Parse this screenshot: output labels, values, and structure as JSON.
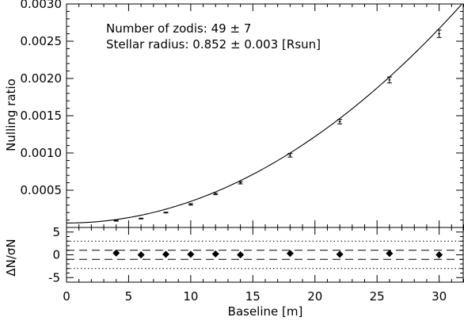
{
  "chart_data": [
    {
      "type": "line",
      "ylabel": "Nulling ratio",
      "xlim": [
        0,
        32
      ],
      "ylim": [
        0,
        0.003
      ],
      "grid": false,
      "x_ticks": [
        "0",
        "5",
        "10",
        "15",
        "20",
        "25",
        "30"
      ],
      "y_ticks": [
        "0.0005",
        "0.0010",
        "0.0015",
        "0.0020",
        "0.0025",
        "0.0030"
      ],
      "y_tick_values": [
        0.0005,
        0.001,
        0.0015,
        0.002,
        0.0025,
        0.003
      ],
      "annotations": [
        "Number of zodis: 49 ± 7",
        "Stellar radius: 0.852 ± 0.003 [Rsun]"
      ],
      "model_curve": {
        "formula": "y = 0.00006 + 0.00000290 * x^2",
        "x_range": [
          0,
          32
        ]
      },
      "points": [
        {
          "x": 4,
          "y": 9e-05,
          "err": 5e-06
        },
        {
          "x": 6,
          "y": 0.00012,
          "err": 5e-06
        },
        {
          "x": 8,
          "y": 0.0002,
          "err": 5e-06
        },
        {
          "x": 10,
          "y": 0.00031,
          "err": 1e-05
        },
        {
          "x": 12,
          "y": 0.00045,
          "err": 1e-05
        },
        {
          "x": 14,
          "y": 0.0006,
          "err": 1.5e-05
        },
        {
          "x": 18,
          "y": 0.00097,
          "err": 2.5e-05
        },
        {
          "x": 22,
          "y": 0.00142,
          "err": 3e-05
        },
        {
          "x": 26,
          "y": 0.00198,
          "err": 4e-05
        },
        {
          "x": 30,
          "y": 0.0026,
          "err": 5e-05
        }
      ]
    },
    {
      "type": "scatter",
      "xlabel": "Baseline [m]",
      "ylabel": "ΔN/σN",
      "xlim": [
        0,
        32
      ],
      "ylim": [
        -6,
        6
      ],
      "x_ticks": [
        "0",
        "5",
        "10",
        "15",
        "20",
        "25",
        "30"
      ],
      "y_ticks": [
        "5",
        "0",
        "-5"
      ],
      "y_tick_values": [
        5,
        0,
        -5
      ],
      "reference_lines": {
        "dashed": [
          1,
          -1
        ],
        "dotted": [
          3,
          -3
        ]
      },
      "points": [
        {
          "x": 4,
          "y": 0.4
        },
        {
          "x": 6,
          "y": 0.0
        },
        {
          "x": 8,
          "y": 0.1
        },
        {
          "x": 10,
          "y": 0.1
        },
        {
          "x": 12,
          "y": 0.2
        },
        {
          "x": 14,
          "y": 0.0
        },
        {
          "x": 18,
          "y": 0.3
        },
        {
          "x": 22,
          "y": 0.1
        },
        {
          "x": 26,
          "y": 0.3
        },
        {
          "x": 30,
          "y": 0.0
        }
      ]
    }
  ]
}
